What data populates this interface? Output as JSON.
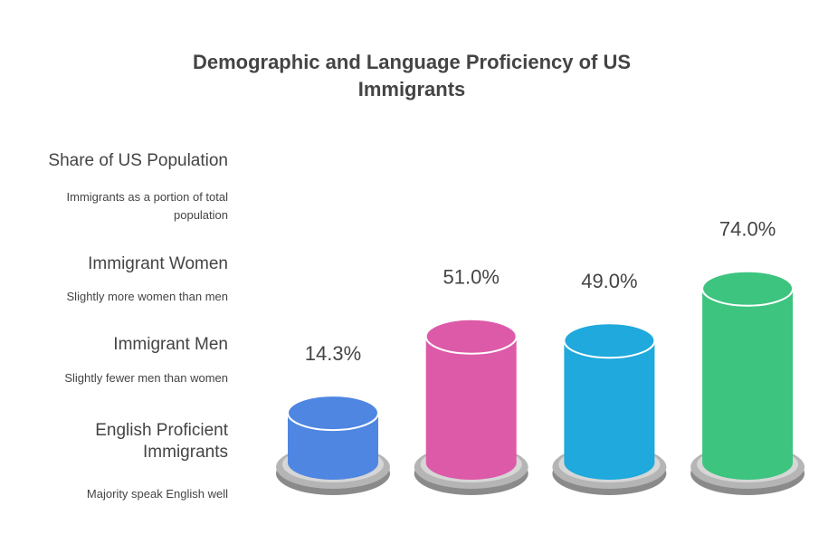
{
  "chart_data": {
    "type": "bar",
    "title": "Demographic and Language Proficiency of US Immigrants",
    "categories": [
      "Share of US Population",
      "Immigrant Women",
      "Immigrant Men",
      "English Proficient Immigrants"
    ],
    "descriptions": [
      "Immigrants as a portion of total population",
      "Slightly more women than men",
      "Slightly fewer men than women",
      "Majority speak English well"
    ],
    "values": [
      14.3,
      51.0,
      49.0,
      74.0
    ],
    "value_labels": [
      "14.3%",
      "51.0%",
      "49.0%",
      "74.0%"
    ],
    "colors": [
      "#4f86e2",
      "#dd5aa9",
      "#1fa9dc",
      "#3dc47f"
    ]
  }
}
